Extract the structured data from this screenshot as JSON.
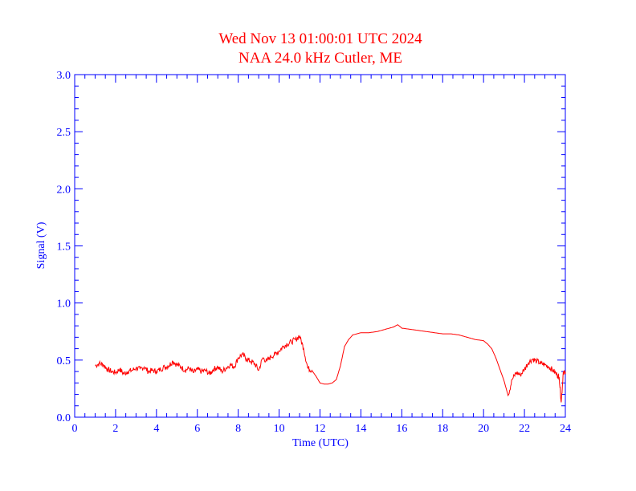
{
  "chart_data": {
    "type": "line",
    "title": "Wed Nov 13 01:00:01 UTC 2024",
    "subtitle": "NAA 24.0 kHz Cutler, ME",
    "xlabel": "Time (UTC)",
    "ylabel": "Signal (V)",
    "xlim": [
      0,
      24
    ],
    "ylim": [
      0.0,
      3.0
    ],
    "xticks": [
      0,
      2,
      4,
      6,
      8,
      10,
      12,
      14,
      16,
      18,
      20,
      22,
      24
    ],
    "xtick_labels": [
      "0",
      "2",
      "4",
      "6",
      "8",
      "10",
      "12",
      "14",
      "16",
      "18",
      "20",
      "22",
      "24"
    ],
    "yticks": [
      0.0,
      0.5,
      1.0,
      1.5,
      2.0,
      2.5,
      3.0
    ],
    "ytick_labels": [
      "0.0",
      "0.5",
      "1.0",
      "1.5",
      "2.0",
      "2.5",
      "3.0"
    ],
    "grid": false,
    "colors": {
      "title": "#ff0000",
      "axes": "#0000ff",
      "series": "#ff0000"
    },
    "series": [
      {
        "x": [
          1.0,
          1.2,
          1.4,
          1.6,
          1.8,
          2.0,
          2.2,
          2.4,
          2.6,
          2.8,
          3.0,
          3.2,
          3.4,
          3.6,
          3.8,
          4.0,
          4.2,
          4.4,
          4.6,
          4.8,
          5.0,
          5.2,
          5.4,
          5.6,
          5.8,
          6.0,
          6.2,
          6.4,
          6.6,
          6.8,
          7.0,
          7.2,
          7.4,
          7.6,
          7.8,
          8.0,
          8.2,
          8.4,
          8.6,
          8.8,
          9.0,
          9.2,
          9.4,
          9.6,
          9.8,
          10.0,
          10.2,
          10.4,
          10.6,
          10.8,
          11.0,
          11.2,
          11.4,
          11.6,
          11.8,
          12.0,
          12.2,
          12.4,
          12.6,
          12.8,
          13.0,
          13.2,
          13.4,
          13.6,
          13.8,
          14.0,
          14.4,
          14.8,
          15.2,
          15.6,
          15.8,
          16.0,
          16.4,
          16.8,
          17.2,
          17.6,
          18.0,
          18.4,
          18.8,
          19.2,
          19.6,
          20.0,
          20.2,
          20.4,
          20.6,
          20.8,
          21.0,
          21.2,
          21.4,
          21.6,
          21.8,
          22.0,
          22.2,
          22.4,
          22.6,
          22.8,
          23.0,
          23.2,
          23.4,
          23.6,
          23.7,
          23.8,
          23.9,
          24.0
        ],
        "y": [
          0.45,
          0.47,
          0.46,
          0.42,
          0.4,
          0.39,
          0.42,
          0.38,
          0.4,
          0.41,
          0.43,
          0.42,
          0.44,
          0.4,
          0.41,
          0.4,
          0.42,
          0.44,
          0.45,
          0.49,
          0.46,
          0.44,
          0.41,
          0.43,
          0.39,
          0.42,
          0.4,
          0.41,
          0.38,
          0.42,
          0.44,
          0.4,
          0.43,
          0.46,
          0.44,
          0.52,
          0.55,
          0.51,
          0.49,
          0.47,
          0.41,
          0.52,
          0.49,
          0.53,
          0.55,
          0.58,
          0.62,
          0.64,
          0.66,
          0.68,
          0.71,
          0.6,
          0.43,
          0.41,
          0.36,
          0.3,
          0.29,
          0.29,
          0.3,
          0.33,
          0.45,
          0.62,
          0.68,
          0.72,
          0.73,
          0.74,
          0.74,
          0.75,
          0.77,
          0.79,
          0.81,
          0.78,
          0.77,
          0.76,
          0.75,
          0.74,
          0.73,
          0.73,
          0.72,
          0.7,
          0.68,
          0.67,
          0.64,
          0.6,
          0.52,
          0.42,
          0.32,
          0.19,
          0.33,
          0.39,
          0.37,
          0.42,
          0.48,
          0.51,
          0.49,
          0.47,
          0.46,
          0.44,
          0.41,
          0.37,
          0.35,
          0.13,
          0.4,
          0.38
        ]
      }
    ]
  }
}
